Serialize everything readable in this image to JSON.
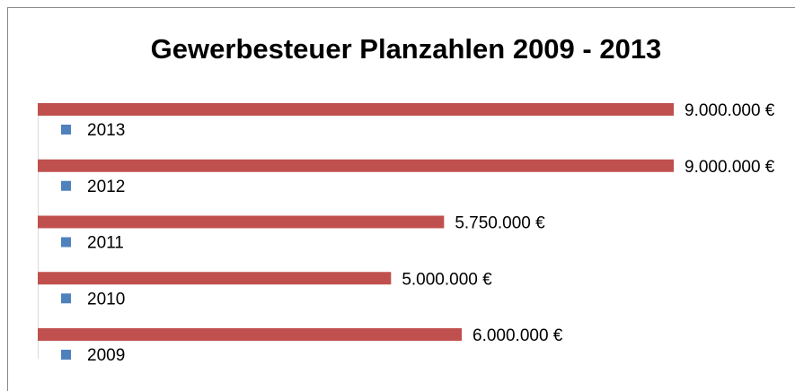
{
  "chart_data": {
    "type": "bar",
    "orientation": "horizontal",
    "title": "Gewerbesteuer Planzahlen 2009 - 2013",
    "categories": [
      "2009",
      "2010",
      "2011",
      "2012",
      "2013"
    ],
    "values": [
      6000000,
      5000000,
      5750000,
      9000000,
      9000000
    ],
    "value_labels": [
      "6.000.000 €",
      "5.000.000 €",
      "5.750.000 €",
      "9.000.000 €",
      "9.000.000 €"
    ],
    "color": "#c0504d",
    "marker_color": "#4f81bd"
  }
}
